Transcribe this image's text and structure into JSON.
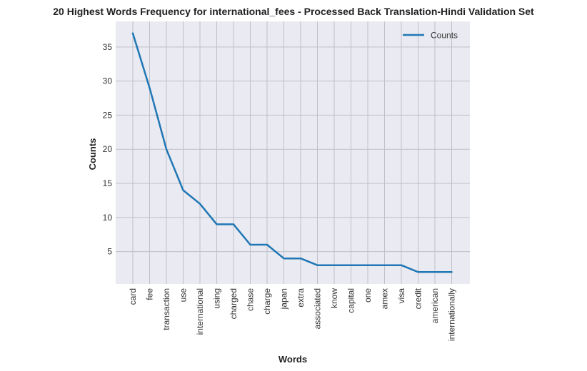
{
  "chart_data": {
    "type": "line",
    "title": "20 Highest Words Frequency for international_fees - Processed Back Translation-Hindi Validation Set",
    "xlabel": "Words",
    "ylabel": "Counts",
    "categories": [
      "card",
      "fee",
      "transaction",
      "use",
      "international",
      "using",
      "charged",
      "chase",
      "charge",
      "japan",
      "extra",
      "associated",
      "know",
      "capital",
      "one",
      "amex",
      "visa",
      "credit",
      "american",
      "internationally"
    ],
    "series": [
      {
        "name": "Counts",
        "values": [
          37,
          29,
          20,
          14,
          12,
          9,
          9,
          6,
          6,
          4,
          4,
          3,
          3,
          3,
          3,
          3,
          3,
          2,
          2,
          2
        ]
      }
    ],
    "yticks": [
      5,
      10,
      15,
      20,
      25,
      30,
      35
    ],
    "ylim": [
      0.25,
      38.75
    ],
    "grid": true,
    "legend": "top-right",
    "colors": {
      "line": "#1f77b4",
      "plot_background": "#eaeaf2",
      "grid": "#c0c0c8"
    }
  }
}
